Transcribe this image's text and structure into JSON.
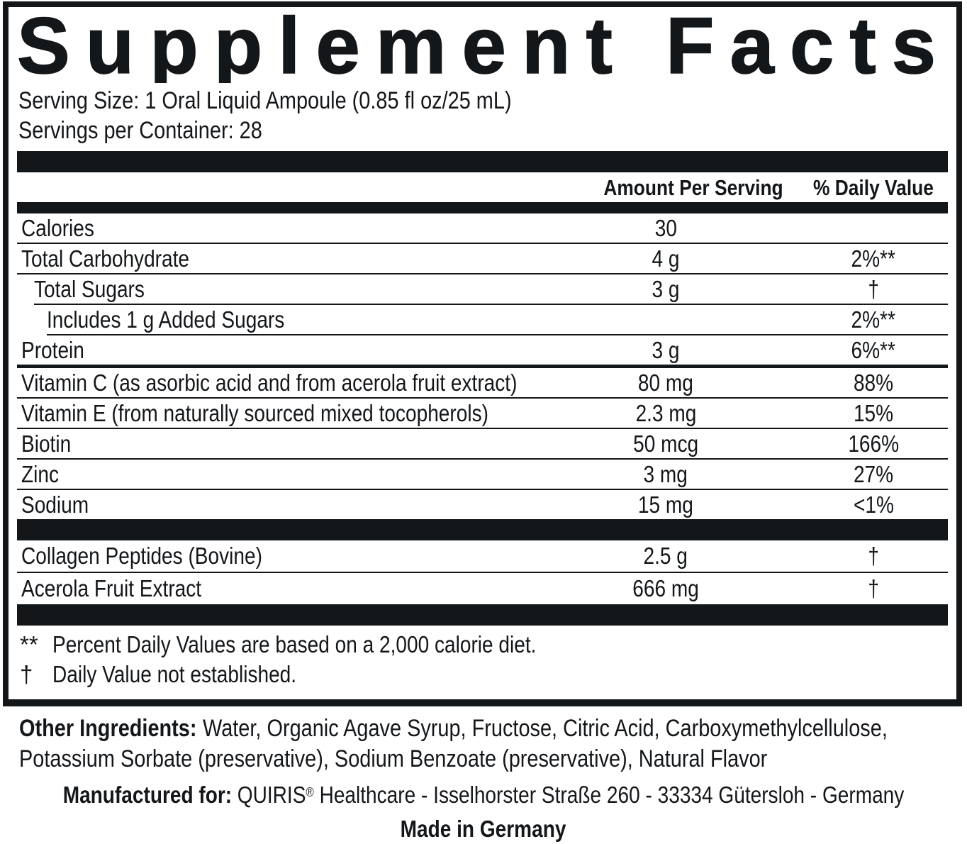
{
  "title": "Supplement Facts",
  "colors": {
    "ink": "#14171a"
  },
  "serving": {
    "size_line": "Serving Size: 1 Oral Liquid Ampoule (0.85 fl oz/25 mL)",
    "container_line": "Servings per Container: 28"
  },
  "table": {
    "amount_header": "Amount Per Serving",
    "dv_header": "% Daily Value",
    "rows": [
      {
        "label": "Calories",
        "amount": "30",
        "dv": ""
      },
      {
        "label": "Total Carbohydrate",
        "amount": "4 g",
        "dv": "2%**"
      },
      {
        "label": "Total Sugars",
        "amount": "3 g",
        "dv": "†"
      },
      {
        "label": "Includes 1 g Added Sugars",
        "amount": "",
        "dv": "2%**"
      },
      {
        "label": "Protein",
        "amount": "3 g",
        "dv": "6%**"
      },
      {
        "label": "Vitamin C (as asorbic acid and from acerola fruit extract)",
        "amount": "80 mg",
        "dv": "88%"
      },
      {
        "label": "Vitamin E (from naturally sourced mixed tocopherols)",
        "amount": "2.3 mg",
        "dv": "15%"
      },
      {
        "label": "Biotin",
        "amount": "50 mcg",
        "dv": "166%"
      },
      {
        "label": "Zinc",
        "amount": "3 mg",
        "dv": "27%"
      },
      {
        "label": "Sodium",
        "amount": "15 mg",
        "dv": "<1%"
      }
    ],
    "rows2": [
      {
        "label": "Collagen Peptides (Bovine)",
        "amount": "2.5 g",
        "dv": "†"
      },
      {
        "label": "Acerola Fruit Extract",
        "amount": "666 mg",
        "dv": "†"
      }
    ]
  },
  "footnotes": [
    {
      "symbol": "**",
      "text": "Percent Daily Values are based on a 2,000 calorie diet."
    },
    {
      "symbol": "†",
      "text": "Daily Value not established."
    }
  ],
  "other_ingredients": {
    "label": "Other Ingredients:",
    "line1_rest": "Water, Organic Agave Syrup, Fructose, Citric Acid, Carboxymethylcellulose,",
    "line2": "Potassium Sorbate (preservative), Sodium Benzoate (preservative), Natural Flavor"
  },
  "manufactured": {
    "label": "Manufactured for:",
    "brand": "QUIRIS",
    "reg": "®",
    "rest": " Healthcare - Isselhorster Straße 260 - 33334 Gütersloh - Germany"
  },
  "made_in": "Made in Germany"
}
